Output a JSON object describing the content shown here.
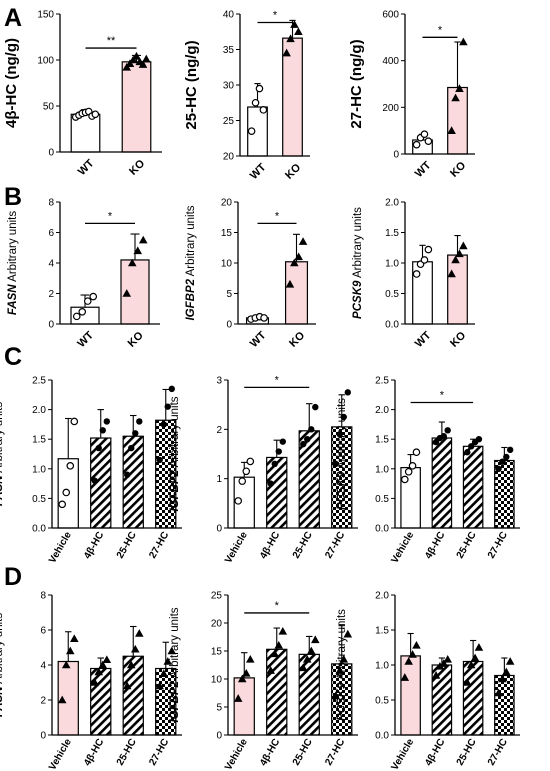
{
  "panel_letters": [
    "A",
    "B",
    "C",
    "D"
  ],
  "colors": {
    "pink": "#fadadd",
    "white": "#ffffff",
    "axis": "#000000"
  },
  "chart_data": [
    {
      "panel": "A",
      "type": "bar",
      "ylabel": "4β-HC (ng/g)",
      "ylabel_style": "plain",
      "ylim": [
        0,
        150
      ],
      "yticks": [
        "0",
        "50",
        "100",
        "150"
      ],
      "categories": [
        "WT",
        "KO"
      ],
      "values": [
        41,
        98
      ],
      "errors": [
        5,
        7
      ],
      "fills": [
        "white",
        "pink"
      ],
      "points": [
        [
          38,
          40,
          42,
          43,
          44,
          39,
          41
        ],
        [
          92,
          96,
          100,
          104,
          98,
          95,
          101
        ]
      ],
      "markers": [
        "circle",
        "triangle"
      ],
      "sig": [
        {
          "from": 0,
          "to": 1,
          "label": "**",
          "y": 113
        }
      ]
    },
    {
      "panel": "A",
      "type": "bar",
      "ylabel": "25-HC (ng/g)",
      "ylabel_style": "plain",
      "ylim": [
        20,
        40
      ],
      "yticks": [
        "20",
        "25",
        "30",
        "35",
        "40"
      ],
      "categories": [
        "WT",
        "KO"
      ],
      "values": [
        26.9,
        36.6
      ],
      "errors": [
        3.3,
        2.5
      ],
      "fills": [
        "white",
        "pink"
      ],
      "points": [
        [
          23.5,
          27.5,
          29.5,
          26.5
        ],
        [
          34.5,
          36.5,
          38.5,
          37.5
        ]
      ],
      "markers": [
        "circle",
        "triangle"
      ],
      "sig": [
        {
          "from": 0,
          "to": 1,
          "label": "*",
          "y": 38.8
        }
      ]
    },
    {
      "panel": "A",
      "type": "bar",
      "ylabel": "27-HC (ng/g)",
      "ylabel_style": "plain",
      "ylim": [
        0,
        600
      ],
      "yticks": [
        "0",
        "200",
        "400",
        "600"
      ],
      "categories": [
        "WT",
        "KO"
      ],
      "values": [
        60,
        285
      ],
      "errors": [
        25,
        195
      ],
      "fills": [
        "white",
        "pink"
      ],
      "points": [
        [
          40,
          70,
          85,
          55
        ],
        [
          100,
          240,
          280,
          480
        ]
      ],
      "markers": [
        "circle",
        "triangle"
      ],
      "sig": [
        {
          "from": 0,
          "to": 1,
          "label": "*",
          "y": 500
        }
      ]
    },
    {
      "panel": "B",
      "type": "bar",
      "ylabel_gene": "FASN",
      "ylabel": "Arbitrary units",
      "ylabel_style": "gene",
      "ylim": [
        0,
        8
      ],
      "yticks": [
        "0",
        "2",
        "4",
        "6",
        "8"
      ],
      "categories": [
        "WT",
        "KO"
      ],
      "values": [
        1.1,
        4.2
      ],
      "errors": [
        0.8,
        1.7
      ],
      "fills": [
        "white",
        "pink"
      ],
      "points": [
        [
          0.5,
          0.8,
          1.5,
          1.8
        ],
        [
          2.0,
          4.0,
          4.8,
          5.5
        ]
      ],
      "markers": [
        "circle",
        "triangle"
      ],
      "sig": [
        {
          "from": 0,
          "to": 1,
          "label": "*",
          "y": 6.6
        }
      ]
    },
    {
      "panel": "B",
      "type": "bar",
      "ylabel_gene": "IGFBP2",
      "ylabel": "Arbitrary units",
      "ylabel_style": "gene",
      "ylim": [
        0,
        20
      ],
      "yticks": [
        "0",
        "5",
        "10",
        "15",
        "20"
      ],
      "categories": [
        "WT",
        "KO"
      ],
      "values": [
        1.0,
        10.2
      ],
      "errors": [
        0.3,
        4.5
      ],
      "fills": [
        "white",
        "pink"
      ],
      "points": [
        [
          0.8,
          1.0,
          1.2,
          1.0
        ],
        [
          6.5,
          10.0,
          11.0,
          13.5
        ]
      ],
      "markers": [
        "circle",
        "triangle"
      ],
      "sig": [
        {
          "from": 0,
          "to": 1,
          "label": "*",
          "y": 16.5
        }
      ]
    },
    {
      "panel": "B",
      "type": "bar",
      "ylabel_gene": "PCSK9",
      "ylabel": "Arbitrary units",
      "ylabel_style": "gene",
      "ylim": [
        0,
        2
      ],
      "yticks": [
        "0.0",
        "0.5",
        "1.0",
        "1.5",
        "2.0"
      ],
      "categories": [
        "WT",
        "KO"
      ],
      "values": [
        1.02,
        1.13
      ],
      "errors": [
        0.27,
        0.32
      ],
      "fills": [
        "white",
        "pink"
      ],
      "points": [
        [
          0.82,
          0.98,
          1.05,
          1.22
        ],
        [
          0.82,
          1.05,
          1.15,
          1.28
        ]
      ],
      "markers": [
        "circle",
        "triangle"
      ],
      "sig": []
    },
    {
      "panel": "C",
      "type": "bar",
      "ylabel_gene": "FASN",
      "ylabel": "Arbitrary units",
      "ylabel_style": "gene",
      "ylim": [
        0,
        2.5
      ],
      "yticks": [
        "0.0",
        "0.5",
        "1.0",
        "1.5",
        "2.0",
        "2.5"
      ],
      "categories": [
        "Vehicle",
        "4β-HC",
        "25-HC",
        "27-HC"
      ],
      "values": [
        1.17,
        1.52,
        1.55,
        1.82
      ],
      "errors": [
        0.68,
        0.48,
        0.35,
        0.52
      ],
      "fills": [
        "white",
        "diag",
        "diag",
        "check"
      ],
      "points": [
        [
          0.4,
          0.6,
          1.05,
          1.8
        ],
        [
          0.8,
          1.35,
          1.65,
          1.8
        ],
        [
          0.9,
          1.35,
          1.6,
          1.8
        ],
        [
          1.15,
          1.75,
          2.05,
          2.35
        ]
      ],
      "markers": [
        "circle",
        "dot",
        "dot",
        "dot"
      ],
      "sig": []
    },
    {
      "panel": "C",
      "type": "bar",
      "ylabel_gene": "IGFBP2",
      "ylabel": "Arbitrary units",
      "ylabel_style": "gene",
      "ylim": [
        0,
        3
      ],
      "yticks": [
        "0",
        "1",
        "2",
        "3"
      ],
      "categories": [
        "Vehicle",
        "4β-HC",
        "25-HC",
        "27-HC"
      ],
      "values": [
        1.03,
        1.43,
        1.97,
        2.05
      ],
      "errors": [
        0.3,
        0.35,
        0.55,
        0.65
      ],
      "fills": [
        "white",
        "diag",
        "diag",
        "check"
      ],
      "points": [
        [
          0.55,
          0.95,
          1.15,
          1.35
        ],
        [
          0.9,
          1.3,
          1.55,
          1.75
        ],
        [
          1.7,
          1.8,
          2.0,
          2.45
        ],
        [
          1.3,
          1.9,
          2.25,
          2.75
        ]
      ],
      "markers": [
        "circle",
        "dot",
        "dot",
        "dot"
      ],
      "sig": [
        {
          "from": 0,
          "to": 2,
          "label": "*",
          "y": 2.85
        }
      ]
    },
    {
      "panel": "C",
      "type": "bar",
      "ylabel_gene": "PCSK9",
      "ylabel": "Arbitrary units",
      "ylabel_style": "gene",
      "ylim": [
        0,
        2.5
      ],
      "yticks": [
        "0.0",
        "0.5",
        "1.0",
        "1.5",
        "2.0",
        "2.5"
      ],
      "categories": [
        "Vehicle",
        "4β-HC",
        "25-HC",
        "27-HC"
      ],
      "values": [
        1.02,
        1.52,
        1.38,
        1.14
      ],
      "errors": [
        0.22,
        0.27,
        0.12,
        0.22
      ],
      "fills": [
        "white",
        "diag",
        "diag",
        "check"
      ],
      "points": [
        [
          0.82,
          0.95,
          1.05,
          1.28
        ],
        [
          1.45,
          1.52,
          1.55,
          1.65
        ],
        [
          1.28,
          1.38,
          1.45,
          1.5
        ],
        [
          1.0,
          1.12,
          1.2,
          1.32
        ]
      ],
      "markers": [
        "circle",
        "dot",
        "dot",
        "dot"
      ],
      "sig": [
        {
          "from": 0,
          "to": 2,
          "label": "*",
          "y": 2.12
        }
      ]
    },
    {
      "panel": "D",
      "type": "bar",
      "ylabel_gene": "FASN",
      "ylabel": "Arbitrary units",
      "ylabel_style": "gene",
      "ylim": [
        0,
        8
      ],
      "yticks": [
        "0",
        "2",
        "4",
        "6",
        "8"
      ],
      "categories": [
        "Vehicle",
        "4β-HC",
        "25-HC",
        "27-HC"
      ],
      "values": [
        4.2,
        3.8,
        4.5,
        3.8
      ],
      "errors": [
        1.7,
        0.6,
        1.7,
        1.5
      ],
      "fills": [
        "pink",
        "diag",
        "diag",
        "check"
      ],
      "points": [
        [
          2.0,
          4.0,
          4.8,
          5.5
        ],
        [
          3.0,
          3.6,
          4.0,
          4.3
        ],
        [
          2.8,
          4.0,
          4.9,
          5.8
        ],
        [
          2.8,
          3.5,
          4.2,
          4.8
        ]
      ],
      "markers": [
        "triangle",
        "triangle",
        "triangle",
        "triangle"
      ],
      "sig": []
    },
    {
      "panel": "D",
      "type": "bar",
      "ylabel_gene": "IGFBP2",
      "ylabel": "Arbitrary units",
      "ylabel_style": "gene",
      "ylim": [
        0,
        25
      ],
      "yticks": [
        "0",
        "5",
        "10",
        "15",
        "20",
        "25"
      ],
      "categories": [
        "Vehicle",
        "4β-HC",
        "25-HC",
        "27-HC"
      ],
      "values": [
        10.2,
        15.3,
        14.4,
        12.7
      ],
      "errors": [
        4.5,
        3.8,
        3.2,
        7.0
      ],
      "fills": [
        "pink",
        "diag",
        "diag",
        "check"
      ],
      "points": [
        [
          6.5,
          10.0,
          11.0,
          13.5
        ],
        [
          11.5,
          14.5,
          16.0,
          18.5
        ],
        [
          12.0,
          13.5,
          15.0,
          17.0
        ],
        [
          7.0,
          11.5,
          13.5,
          18.0
        ]
      ],
      "markers": [
        "triangle",
        "triangle",
        "triangle",
        "triangle"
      ],
      "sig": [
        {
          "from": 0,
          "to": 2,
          "label": "*",
          "y": 21.8
        }
      ]
    },
    {
      "panel": "D",
      "type": "bar",
      "ylabel_gene": "PCSK9",
      "ylabel": "Arbitrary units",
      "ylabel_style": "gene",
      "ylim": [
        0,
        2
      ],
      "yticks": [
        "0.0",
        "0.5",
        "1.0",
        "1.5",
        "2.0"
      ],
      "categories": [
        "Vehicle",
        "4β-HC",
        "25-HC",
        "27-HC"
      ],
      "values": [
        1.13,
        1.0,
        1.05,
        0.85
      ],
      "errors": [
        0.32,
        0.1,
        0.3,
        0.25
      ],
      "fills": [
        "pink",
        "diag",
        "diag",
        "check"
      ],
      "points": [
        [
          0.82,
          1.05,
          1.15,
          1.28
        ],
        [
          0.85,
          0.98,
          1.02,
          1.08
        ],
        [
          0.75,
          1.0,
          1.1,
          1.25
        ],
        [
          0.6,
          0.8,
          0.9,
          1.05
        ]
      ],
      "markers": [
        "triangle",
        "triangle",
        "triangle",
        "triangle"
      ],
      "sig": []
    }
  ]
}
